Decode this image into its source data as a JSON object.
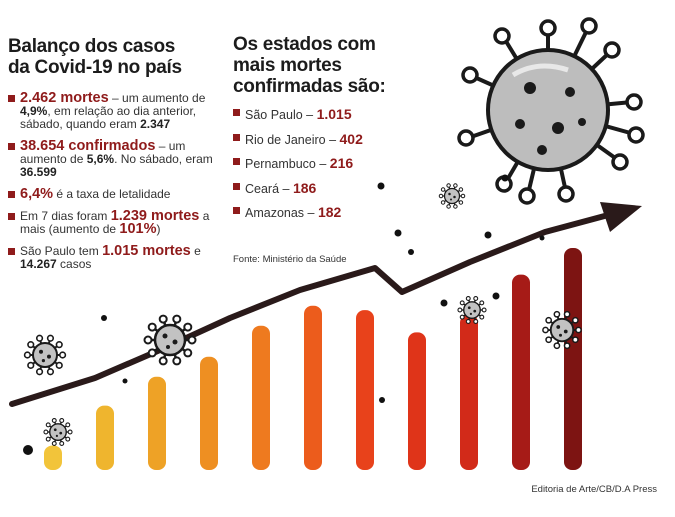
{
  "title_left": {
    "line1": "Balanço dos casos",
    "line2": "da Covid-19 no país"
  },
  "facts": [
    {
      "a": "2.462 mortes",
      "b": " – um aumento de ",
      "c": "4,9%",
      "d": ", em relação ao dia anterior, sábado, quando eram ",
      "e": "2.347"
    },
    {
      "a": "38.654 confirmados",
      "b": " – um aumento de ",
      "c": "5,6%",
      "d": ". No sábado, eram ",
      "e": "36.599"
    },
    {
      "a": "6,4%",
      "b": " é a taxa de letalidade",
      "c": "",
      "d": "",
      "e": ""
    },
    {
      "a": "Em 7 dias foram ",
      "b": "1.239 mortes",
      "c": " a mais (aumento de ",
      "d": "101%",
      "e": ")"
    },
    {
      "a": "São Paulo tem ",
      "b": "1.015 mortes",
      "c": " e ",
      "d": "14.267",
      "e": " casos"
    }
  ],
  "title_right": {
    "line1": "Os estados com",
    "line2": "mais mortes",
    "line3": "confirmadas são:"
  },
  "states": [
    {
      "name": "São Paulo – ",
      "value": "1.015"
    },
    {
      "name": "Rio de Janeiro – ",
      "value": "402"
    },
    {
      "name": "Pernambuco – ",
      "value": "216"
    },
    {
      "name": "Ceará – ",
      "value": "186"
    },
    {
      "name": "Amazonas – ",
      "value": "182"
    }
  ],
  "source": "Fonte: Ministério da Saúde",
  "credit": "Editoria de Arte/CB/D.A Press",
  "bars": [
    {
      "level": 0.11,
      "color": "#f2c43a"
    },
    {
      "level": 0.29,
      "color": "#efb52e"
    },
    {
      "level": 0.42,
      "color": "#eea226"
    },
    {
      "level": 0.51,
      "color": "#ee8f22"
    },
    {
      "level": 0.65,
      "color": "#ee7a1f"
    },
    {
      "level": 0.74,
      "color": "#ec5c1c"
    },
    {
      "level": 0.72,
      "color": "#e8421b"
    },
    {
      "level": 0.62,
      "color": "#df3419"
    },
    {
      "level": 0.7,
      "color": "#d22a19"
    },
    {
      "level": 0.88,
      "color": "#a61b17"
    },
    {
      "level": 1.0,
      "color": "#7d1412"
    }
  ]
}
